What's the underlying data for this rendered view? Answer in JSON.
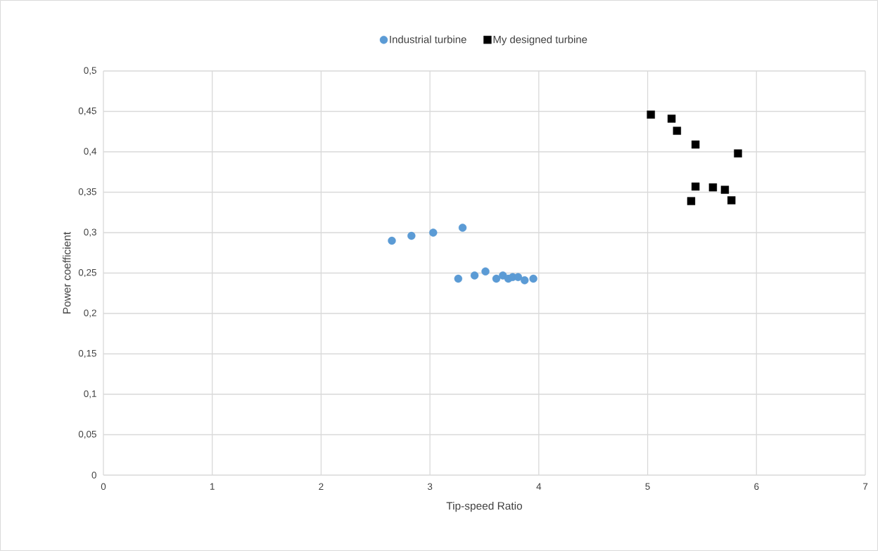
{
  "chart_data": {
    "type": "scatter",
    "xlabel": "Tip-speed Ratio",
    "ylabel": "Power coefficient",
    "xlim": [
      0,
      7
    ],
    "xticks": [
      0,
      1,
      2,
      3,
      4,
      5,
      6,
      7
    ],
    "ylim": [
      0,
      0.5
    ],
    "yticks": [
      0,
      {
        "value": 0.05,
        "label": "0,05"
      },
      {
        "value": 0.1,
        "label": "0,1"
      },
      {
        "value": 0.15,
        "label": "0,15"
      },
      {
        "value": 0.2,
        "label": "0,2"
      },
      {
        "value": 0.25,
        "label": "0,25"
      },
      {
        "value": 0.3,
        "label": "0,3"
      },
      {
        "value": 0.35,
        "label": "0,35"
      },
      {
        "value": 0.4,
        "label": "0,4"
      },
      {
        "value": 0.45,
        "label": "0,45"
      },
      {
        "value": 0.5,
        "label": "0,5"
      }
    ],
    "grid": true,
    "legend": "top",
    "series": [
      {
        "name": "Industrial turbine",
        "color": "#5b9bd5",
        "marker": "circle",
        "x": [
          2.65,
          2.83,
          3.03,
          3.3,
          3.26,
          3.41,
          3.51,
          3.61,
          3.67,
          3.72,
          3.76,
          3.81,
          3.87,
          3.95
        ],
        "values": [
          0.29,
          0.296,
          0.3,
          0.306,
          0.243,
          0.247,
          0.252,
          0.243,
          0.247,
          0.243,
          0.245,
          0.245,
          0.241,
          0.243
        ]
      },
      {
        "name": "My designed turbine",
        "color": "#000000",
        "marker": "square",
        "x": [
          5.03,
          5.22,
          5.27,
          5.44,
          5.83,
          5.44,
          5.6,
          5.71,
          5.4,
          5.77
        ],
        "values": [
          0.446,
          0.441,
          0.426,
          0.409,
          0.398,
          0.357,
          0.356,
          0.353,
          0.339,
          0.34
        ]
      }
    ]
  }
}
